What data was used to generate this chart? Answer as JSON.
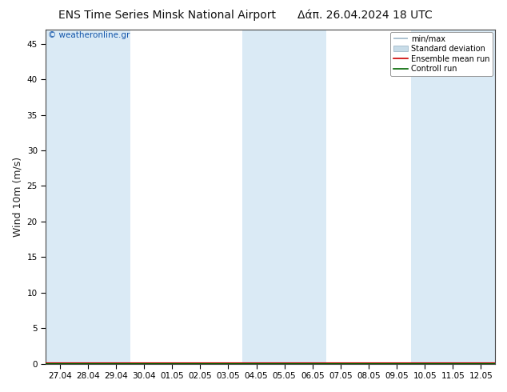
{
  "title_left": "ENS Time Series Minsk National Airport",
  "title_right": "Δάπ. 26.04.2024 18 UTC",
  "watermark": "© weatheronline.gr",
  "ylabel": "Wind 10m (m/s)",
  "ylim": [
    0,
    47
  ],
  "yticks": [
    0,
    5,
    10,
    15,
    20,
    25,
    30,
    35,
    40,
    45
  ],
  "x_labels": [
    "27.04",
    "28.04",
    "29.04",
    "30.04",
    "01.05",
    "02.05",
    "03.05",
    "04.05",
    "05.05",
    "06.05",
    "07.05",
    "08.05",
    "09.05",
    "10.05",
    "11.05",
    "12.05"
  ],
  "n_ticks": 16,
  "shaded_bands_start": [
    0,
    1,
    7,
    9,
    13
  ],
  "shaded_bands_widths": [
    1,
    2,
    3,
    1,
    3
  ],
  "band_color": "#daeaf5",
  "background_color": "#ffffff",
  "plot_bg_color": "#ffffff",
  "legend_entries": [
    "min/max",
    "Standard deviation",
    "Ensemble mean run",
    "Controll run"
  ],
  "legend_line_color": "#a0b8c8",
  "legend_box_color": "#c8dce8",
  "legend_red": "#cc0000",
  "legend_green": "#006600",
  "title_fontsize": 10,
  "tick_fontsize": 7.5,
  "ylabel_fontsize": 9
}
